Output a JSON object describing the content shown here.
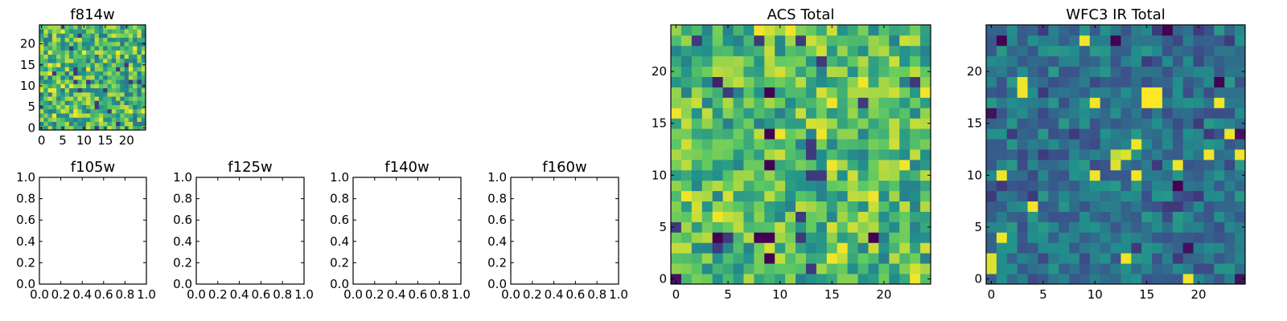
{
  "colors": {
    "colormap": [
      "#440154",
      "#3b528b",
      "#21918c",
      "#5ec962",
      "#fde725"
    ],
    "axes": "#000000",
    "background": "#ffffff"
  },
  "chart_data": [
    {
      "id": "f814w",
      "type": "heatmap",
      "title": "f814w",
      "grid_size": 25,
      "colormap": "viridis",
      "xlim": [
        -0.5,
        24.5
      ],
      "ylim": [
        -0.5,
        24.5
      ],
      "xticks": [
        "0",
        "5",
        "10",
        "15",
        "20"
      ],
      "yticks": [
        "0",
        "5",
        "10",
        "15",
        "20"
      ],
      "values_note_seed": 814,
      "base_level": 0.66,
      "spread": 0.28,
      "hotspots": []
    },
    {
      "id": "f105w",
      "type": "heatmap",
      "title": "f105w",
      "empty": true,
      "xlim": [
        0,
        1
      ],
      "ylim": [
        0,
        1
      ],
      "xticks": [
        "0.0",
        "0.2",
        "0.4",
        "0.6",
        "0.8",
        "1.0"
      ],
      "yticks": [
        "0.0",
        "0.2",
        "0.4",
        "0.6",
        "0.8",
        "1.0"
      ]
    },
    {
      "id": "f125w",
      "type": "heatmap",
      "title": "f125w",
      "empty": true,
      "xlim": [
        0,
        1
      ],
      "ylim": [
        0,
        1
      ],
      "xticks": [
        "0.0",
        "0.2",
        "0.4",
        "0.6",
        "0.8",
        "1.0"
      ],
      "yticks": [
        "0.0",
        "0.2",
        "0.4",
        "0.6",
        "0.8",
        "1.0"
      ]
    },
    {
      "id": "f140w",
      "type": "heatmap",
      "title": "f140w",
      "empty": true,
      "xlim": [
        0,
        1
      ],
      "ylim": [
        0,
        1
      ],
      "xticks": [
        "0.0",
        "0.2",
        "0.4",
        "0.6",
        "0.8",
        "1.0"
      ],
      "yticks": [
        "0.0",
        "0.2",
        "0.4",
        "0.6",
        "0.8",
        "1.0"
      ]
    },
    {
      "id": "f160w",
      "type": "heatmap",
      "title": "f160w",
      "empty": true,
      "xlim": [
        0,
        1
      ],
      "ylim": [
        0,
        1
      ],
      "xticks": [
        "0.0",
        "0.2",
        "0.4",
        "0.6",
        "0.8",
        "1.0"
      ],
      "yticks": [
        "0.0",
        "0.2",
        "0.4",
        "0.6",
        "0.8",
        "1.0"
      ]
    },
    {
      "id": "acs-total",
      "type": "heatmap",
      "title": "ACS Total",
      "grid_size": 25,
      "colormap": "viridis",
      "xlim": [
        -0.5,
        24.5
      ],
      "ylim": [
        -0.5,
        24.5
      ],
      "xticks": [
        "0",
        "5",
        "10",
        "15",
        "20"
      ],
      "yticks": [
        "0",
        "5",
        "10",
        "15",
        "20"
      ],
      "values_note_seed": 17,
      "base_level": 0.68,
      "spread": 0.26,
      "hotspots": [
        {
          "x": 9,
          "y": 11,
          "v": 0.0
        },
        {
          "x": 9,
          "y": 18,
          "v": 0.0
        },
        {
          "x": 4,
          "y": 4,
          "v": 0.0
        },
        {
          "x": 8,
          "y": 4,
          "v": 0.0
        },
        {
          "x": 9,
          "y": 4,
          "v": 0.0
        },
        {
          "x": 9,
          "y": 2,
          "v": 0.0
        },
        {
          "x": 0,
          "y": 0,
          "v": 0.05
        },
        {
          "x": 19,
          "y": 4,
          "v": 0.0
        },
        {
          "x": 9,
          "y": 14,
          "v": 0.0
        },
        {
          "x": 4,
          "y": 19,
          "v": 0.1
        }
      ]
    },
    {
      "id": "wfc3-ir-total",
      "type": "heatmap",
      "title": "WFC3 IR Total",
      "grid_size": 25,
      "colormap": "viridis",
      "xlim": [
        -0.5,
        24.5
      ],
      "ylim": [
        -0.5,
        24.5
      ],
      "xticks": [
        "0",
        "5",
        "10",
        "15",
        "20"
      ],
      "yticks": [
        "0",
        "5",
        "10",
        "15",
        "20"
      ],
      "values_note_seed": 3,
      "base_level": 0.38,
      "spread": 0.16,
      "hotspots": [
        {
          "x": 15,
          "y": 17,
          "v": 1.0
        },
        {
          "x": 16,
          "y": 17,
          "v": 1.0
        },
        {
          "x": 15,
          "y": 18,
          "v": 1.0
        },
        {
          "x": 16,
          "y": 18,
          "v": 1.0
        },
        {
          "x": 12,
          "y": 11,
          "v": 0.95
        },
        {
          "x": 13,
          "y": 12,
          "v": 0.95
        },
        {
          "x": 12,
          "y": 12,
          "v": 0.9
        },
        {
          "x": 0,
          "y": 1,
          "v": 0.95
        },
        {
          "x": 0,
          "y": 2,
          "v": 0.95
        },
        {
          "x": 1,
          "y": 23,
          "v": 0.0
        },
        {
          "x": 12,
          "y": 23,
          "v": 0.0
        },
        {
          "x": 17,
          "y": 24,
          "v": 0.0
        },
        {
          "x": 22,
          "y": 19,
          "v": 0.0
        },
        {
          "x": 18,
          "y": 9,
          "v": 0.0
        },
        {
          "x": 24,
          "y": 14,
          "v": 0.05
        },
        {
          "x": 0,
          "y": 16,
          "v": 0.05
        },
        {
          "x": 19,
          "y": 3,
          "v": 0.05
        },
        {
          "x": 24,
          "y": 0,
          "v": 0.05
        }
      ]
    }
  ]
}
